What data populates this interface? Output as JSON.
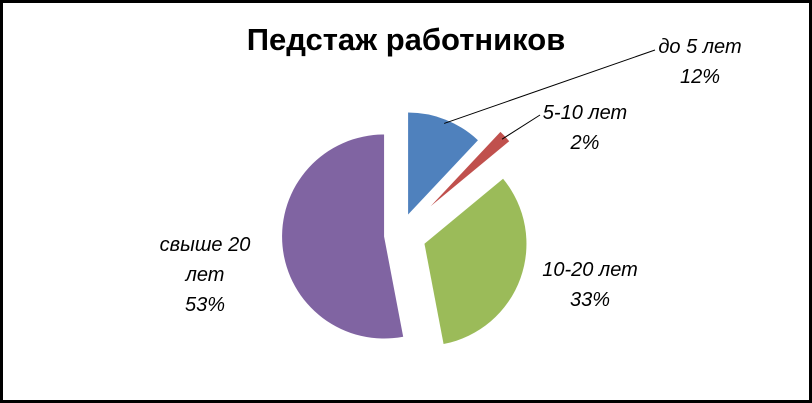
{
  "chart_data": {
    "type": "pie",
    "title": "Педстаж работников",
    "categories": [
      "до 5 лет",
      "5-10 лет",
      "10-20 лет",
      "свыше 20 лет"
    ],
    "values": [
      12,
      2,
      33,
      53
    ],
    "value_labels": [
      "12%",
      "2%",
      "33%",
      "53%"
    ],
    "colors": [
      "#4f81bd",
      "#c0504d",
      "#9bbb59",
      "#8064a2"
    ]
  }
}
